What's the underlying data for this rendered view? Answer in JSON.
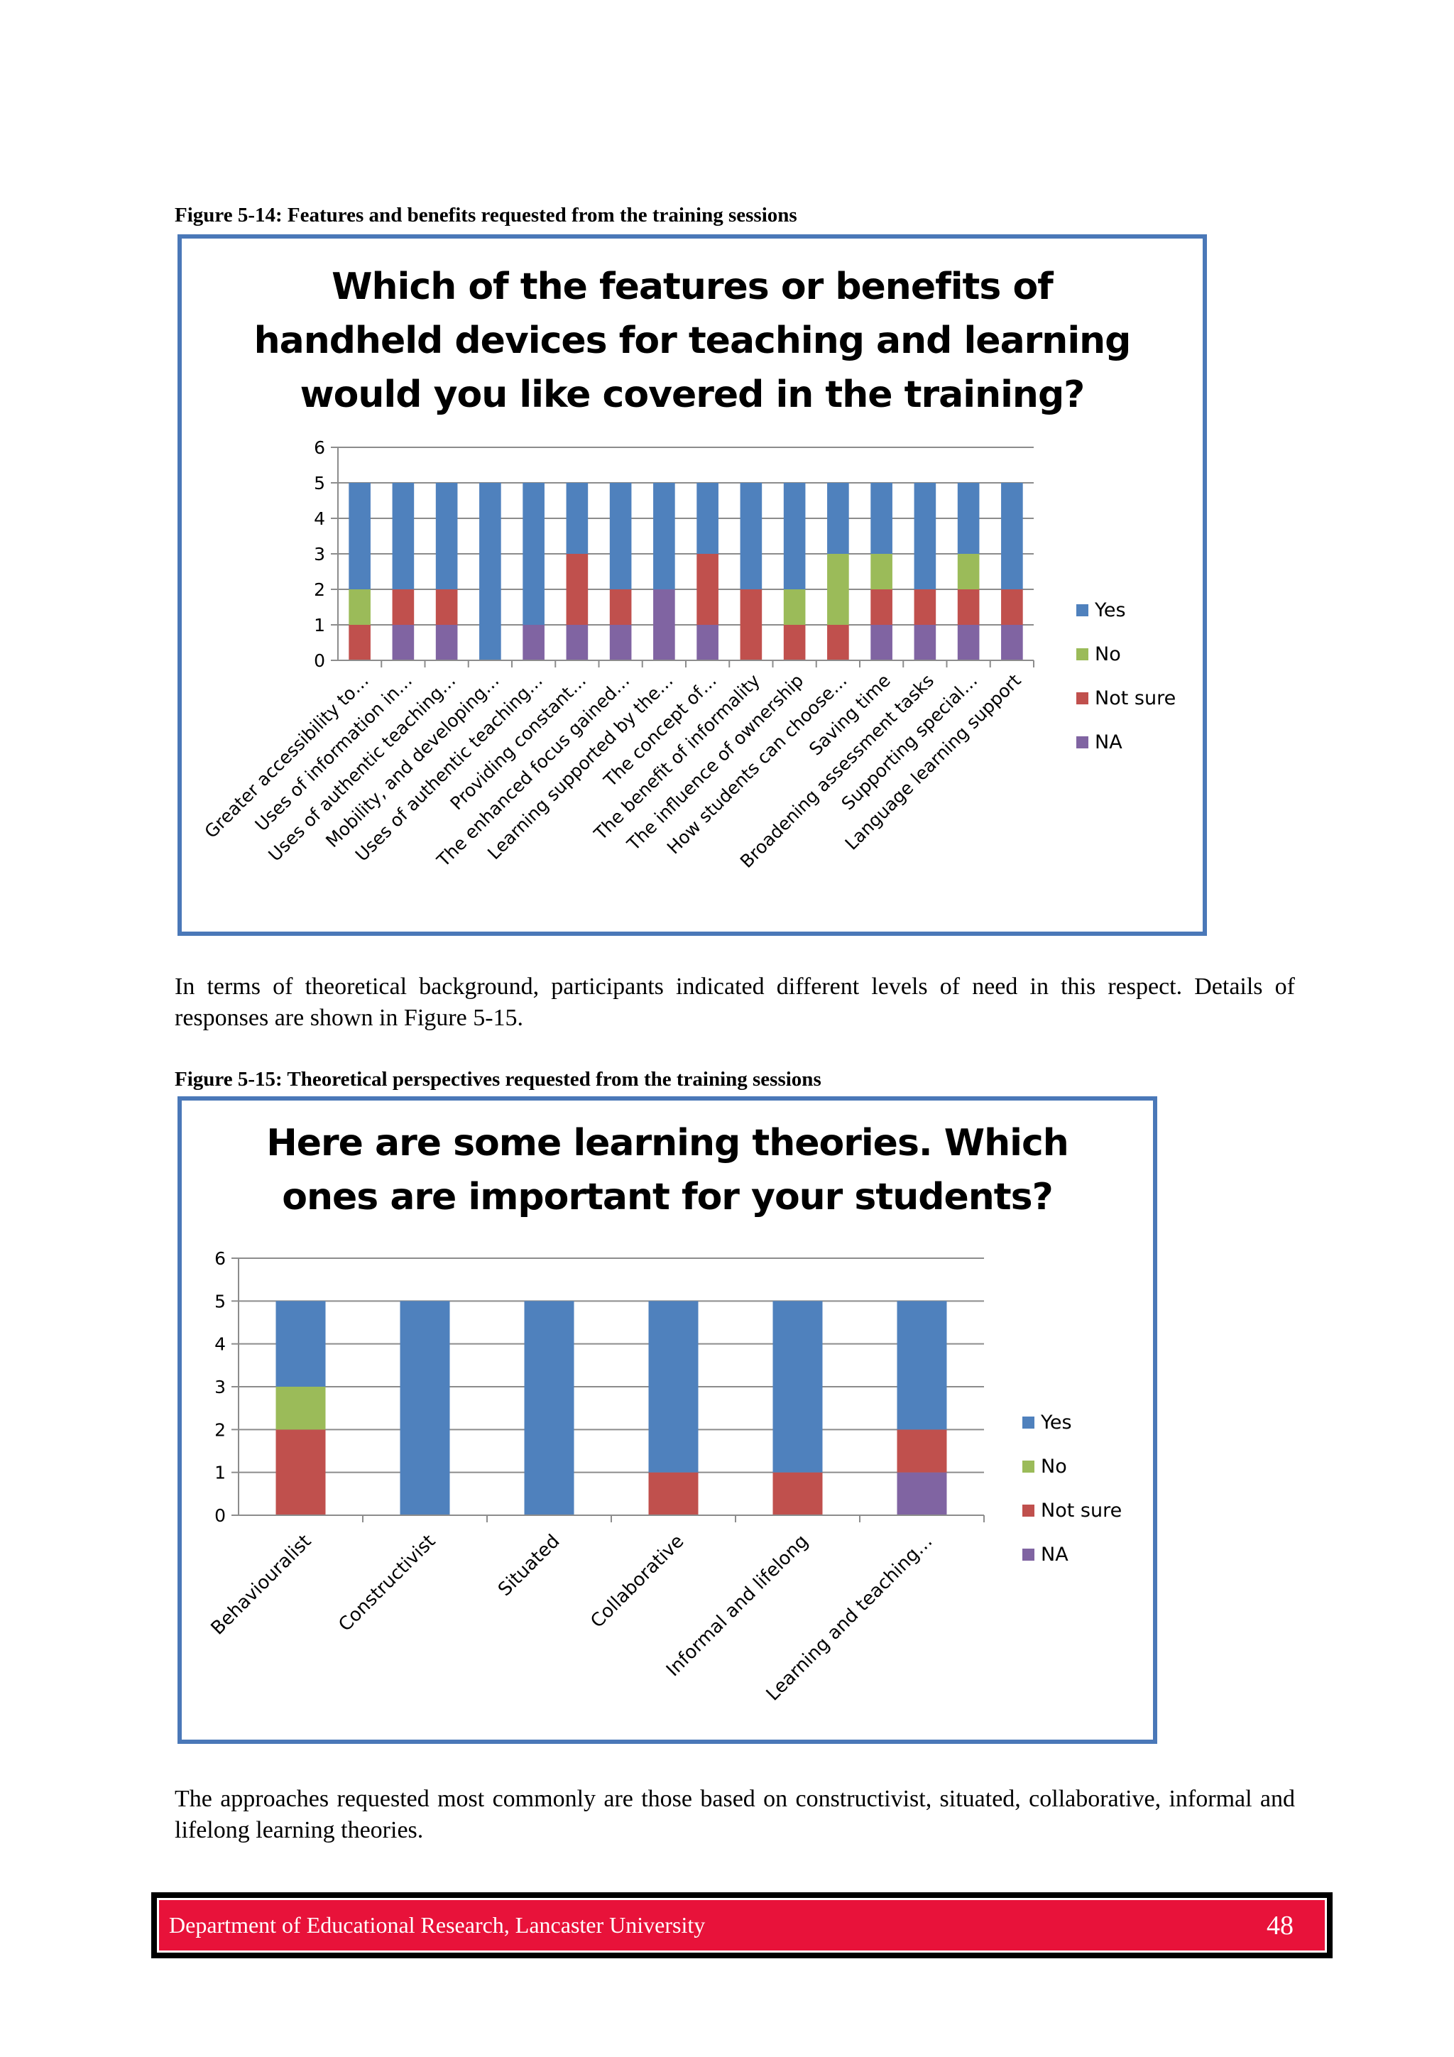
{
  "figure14": {
    "caption": "Figure 5-14: Features and benefits requested from the training sessions"
  },
  "paragraph1": "In terms of theoretical background, participants indicated different levels of need in this respect. Details of responses are shown in Figure 5-15.",
  "figure15": {
    "caption": "Figure 5-15: Theoretical perspectives requested from the training sessions"
  },
  "paragraph2": "The approaches requested most commonly are those based on constructivist, situated, collaborative, informal and lifelong learning theories.",
  "footer": {
    "department": "Department of Educational Research, Lancaster University",
    "page_number": "48"
  },
  "colors": {
    "Yes": "#4f81bd",
    "No": "#9bbb59",
    "Not sure": "#c0504d",
    "NA": "#8064a2",
    "frame": "#4a78b8",
    "footer_bg": "#e8123a"
  },
  "chart_data": [
    {
      "type": "bar",
      "stacked": true,
      "title": "Which of the features or benefits of\nhandheld devices for teaching and learning\nwould you like covered in the training?",
      "categories": [
        "Greater accessibility to…",
        "Uses of information in…",
        "Uses of authentic teaching…",
        "Mobility, and developing…",
        "Uses of authentic teaching…",
        "Providing constant…",
        "The enhanced focus gained…",
        "Learning supported by the…",
        "The concept of…",
        "The benefit of informality",
        "The influence of ownership",
        "How students can choose…",
        "Saving time",
        "Broadening assessment tasks",
        "Supporting special…",
        "Language learning support"
      ],
      "series": [
        {
          "name": "NA",
          "values": [
            0,
            1,
            1,
            0,
            1,
            1,
            1,
            2,
            1,
            0,
            0,
            0,
            1,
            1,
            1,
            1
          ]
        },
        {
          "name": "Not sure",
          "values": [
            1,
            1,
            1,
            0,
            0,
            2,
            1,
            0,
            2,
            2,
            1,
            1,
            1,
            1,
            1,
            1
          ]
        },
        {
          "name": "No",
          "values": [
            1,
            0,
            0,
            0,
            0,
            0,
            0,
            0,
            0,
            0,
            1,
            2,
            1,
            0,
            1,
            0
          ]
        },
        {
          "name": "Yes",
          "values": [
            3,
            3,
            3,
            5,
            4,
            2,
            3,
            3,
            2,
            3,
            3,
            2,
            2,
            3,
            2,
            3
          ]
        }
      ],
      "legend_order": [
        "Yes",
        "No",
        "Not sure",
        "NA"
      ],
      "ylim": [
        0,
        6
      ],
      "yticks": [
        0,
        1,
        2,
        3,
        4,
        5,
        6
      ],
      "grid": true,
      "legend": "right"
    },
    {
      "type": "bar",
      "stacked": true,
      "title": "Here are some learning theories. Which\nones are important for your students?",
      "categories": [
        "Behaviouralist",
        "Constructivist",
        "Situated",
        "Collaborative",
        "Informal and lifelong",
        "Learning and teaching…"
      ],
      "series": [
        {
          "name": "NA",
          "values": [
            0,
            0,
            0,
            0,
            0,
            1
          ]
        },
        {
          "name": "Not sure",
          "values": [
            2,
            0,
            0,
            1,
            1,
            1
          ]
        },
        {
          "name": "No",
          "values": [
            1,
            0,
            0,
            0,
            0,
            0
          ]
        },
        {
          "name": "Yes",
          "values": [
            2,
            5,
            5,
            4,
            4,
            3
          ]
        }
      ],
      "legend_order": [
        "Yes",
        "No",
        "Not sure",
        "NA"
      ],
      "ylim": [
        0,
        6
      ],
      "yticks": [
        0,
        1,
        2,
        3,
        4,
        5,
        6
      ],
      "grid": true,
      "legend": "right"
    }
  ]
}
